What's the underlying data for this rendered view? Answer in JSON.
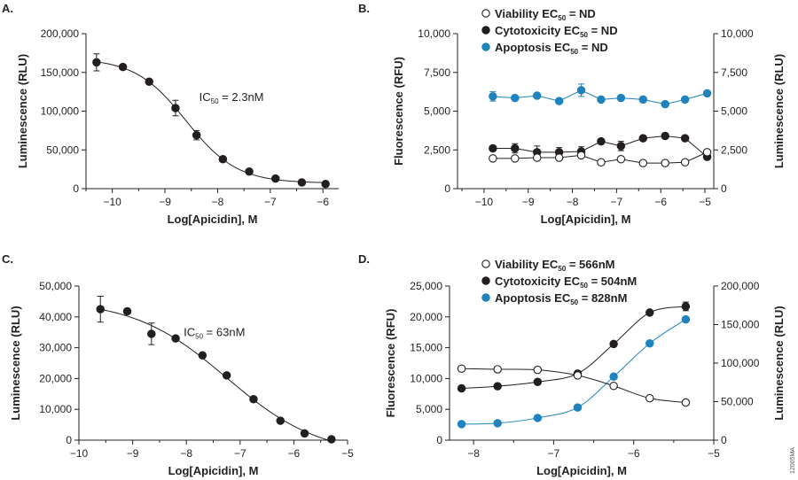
{
  "colors": {
    "black": "#231f20",
    "blue": "#1f83bd",
    "white": "#ffffff"
  },
  "figure_code": "12005MA",
  "chart_data": [
    {
      "id": "A",
      "panel_label": "A.",
      "type": "scatter",
      "xlabel": "Log[Apicidin], M",
      "ylabel": "Luminescence (RLU)",
      "xlim": [
        -10.5,
        -5.7
      ],
      "ylim": [
        0,
        200000
      ],
      "xticks": [
        -10,
        -9,
        -8,
        -7,
        -6
      ],
      "xtick_labels": [
        "−10",
        "−9",
        "−8",
        "−7",
        "−6"
      ],
      "yticks": [
        0,
        50000,
        100000,
        150000,
        200000
      ],
      "ytick_labels": [
        "0",
        "50,000",
        "100,000",
        "150,000",
        "200,000"
      ],
      "annotation": {
        "pre": "IC",
        "sub": "50",
        "post": " = 2.3nM",
        "x": -8.35,
        "y": 113000
      },
      "series": [
        {
          "marker": "filled",
          "color": "#231f20",
          "line_color": "#231f20",
          "fit": "sigmoid",
          "x": [
            -10.3,
            -9.8,
            -9.3,
            -8.8,
            -8.4,
            -7.9,
            -7.4,
            -6.9,
            -6.4,
            -5.95
          ],
          "y": [
            163000,
            157000,
            138000,
            104000,
            69000,
            38000,
            22000,
            13000,
            8000,
            6000
          ],
          "err": [
            11000,
            2000,
            5000,
            10000,
            6000,
            5000,
            2000,
            1500,
            1500,
            1000
          ]
        }
      ]
    },
    {
      "id": "B",
      "panel_label": "B.",
      "type": "scatter",
      "xlabel": "Log[Apicidin], M",
      "ylabel": "Fluorescence (RFU)",
      "y2label": "Luminescence (RLU)",
      "xlim": [
        -10.6,
        -4.8
      ],
      "ylim": [
        0,
        10000
      ],
      "xticks": [
        -10,
        -9,
        -8,
        -7,
        -6,
        -5
      ],
      "xtick_labels": [
        "−10",
        "−9",
        "−8",
        "−7",
        "−6",
        "−5"
      ],
      "yticks": [
        0,
        2500,
        5000,
        7500,
        10000
      ],
      "ytick_labels": [
        "0",
        "2,500",
        "5,000",
        "7,500",
        "10,000"
      ],
      "y2tick_labels": [
        "0",
        "2,500",
        "5,000",
        "7,500",
        "10,000"
      ],
      "legend": [
        {
          "marker": "open",
          "pre": "Viability  EC",
          "sub": "50",
          "post": " = ND"
        },
        {
          "marker": "filled",
          "pre": "Cytotoxicity  EC",
          "sub": "50",
          "post": " = ND"
        },
        {
          "marker": "blue",
          "pre": "Apoptosis EC",
          "sub": "50",
          "post": " = ND"
        }
      ],
      "series": [
        {
          "name": "Apoptosis",
          "marker": "blue",
          "color": "#1f83bd",
          "line_color": "#1f83bd",
          "fit": "connect",
          "x": [
            -9.8,
            -9.3,
            -8.8,
            -8.3,
            -7.8,
            -7.35,
            -6.9,
            -6.4,
            -5.9,
            -5.45,
            -4.95
          ],
          "y": [
            5950,
            5850,
            6000,
            5650,
            6350,
            5750,
            5850,
            5750,
            5450,
            5750,
            6150
          ],
          "err": [
            300,
            150,
            150,
            150,
            400,
            250,
            250,
            150,
            150,
            150,
            150
          ]
        },
        {
          "name": "Cytotoxicity",
          "marker": "filled",
          "color": "#231f20",
          "line_color": "#231f20",
          "fit": "connect",
          "x": [
            -9.8,
            -9.3,
            -8.8,
            -8.3,
            -7.8,
            -7.35,
            -6.9,
            -6.4,
            -5.9,
            -5.45,
            -4.95
          ],
          "y": [
            2600,
            2600,
            2350,
            2350,
            2400,
            3050,
            2750,
            3250,
            3400,
            3250,
            2050
          ],
          "err": [
            100,
            300,
            400,
            300,
            300,
            150,
            300,
            150,
            100,
            150,
            250
          ]
        },
        {
          "name": "Viability",
          "marker": "open",
          "color": "#231f20",
          "line_color": "#231f20",
          "fit": "connect",
          "x": [
            -9.8,
            -9.3,
            -8.8,
            -8.3,
            -7.8,
            -7.35,
            -6.9,
            -6.4,
            -5.9,
            -5.45,
            -4.95
          ],
          "y": [
            1950,
            1950,
            2000,
            2000,
            2150,
            1700,
            1900,
            1650,
            1650,
            1700,
            2350
          ],
          "err": [
            60,
            60,
            150,
            150,
            60,
            60,
            60,
            60,
            60,
            60,
            60
          ]
        }
      ]
    },
    {
      "id": "C",
      "panel_label": "C.",
      "type": "scatter",
      "xlabel": "Log[Apicidin], M",
      "ylabel": "Luminescence (RLU)",
      "xlim": [
        -10,
        -5
      ],
      "ylim": [
        0,
        50000
      ],
      "xticks": [
        -10,
        -9,
        -8,
        -7,
        -6,
        -5
      ],
      "xtick_labels": [
        "−10",
        "−9",
        "−8",
        "−7",
        "−6",
        "−5"
      ],
      "yticks": [
        0,
        10000,
        20000,
        30000,
        40000,
        50000
      ],
      "ytick_labels": [
        "0",
        "10,000",
        "20,000",
        "30,000",
        "40,000",
        "50,000"
      ],
      "annotation": {
        "pre": "IC",
        "sub": "50",
        "post": " = 63nM",
        "x": -8.05,
        "y": 33700
      },
      "series": [
        {
          "marker": "filled",
          "color": "#231f20",
          "line_color": "#231f20",
          "fit": "sigmoid",
          "x": [
            -9.6,
            -9.1,
            -8.65,
            -8.2,
            -7.7,
            -7.25,
            -6.75,
            -6.25,
            -5.8,
            -5.3
          ],
          "y": [
            42500,
            41800,
            34500,
            33000,
            27500,
            21000,
            13300,
            6300,
            2200,
            300
          ],
          "err": [
            4200,
            800,
            3500,
            900,
            800,
            500,
            500,
            400,
            300,
            200
          ]
        }
      ]
    },
    {
      "id": "D",
      "panel_label": "D.",
      "type": "scatter",
      "xlabel": "Log[Apicidin], M",
      "ylabel": "Fluorescence (RFU)",
      "y2label": "Luminescence (RLU)",
      "xlim": [
        -8.3,
        -5
      ],
      "ylim": [
        0,
        25000
      ],
      "xticks": [
        -8,
        -7,
        -6,
        -5
      ],
      "xtick_labels": [
        "−8",
        "−7",
        "−6",
        "−5"
      ],
      "yticks": [
        0,
        5000,
        10000,
        15000,
        20000,
        25000
      ],
      "ytick_labels": [
        "0",
        "5,000",
        "10,000",
        "15,000",
        "20,000",
        "25,000"
      ],
      "y2tick_labels": [
        "0",
        "50,000",
        "100,000",
        "150,000",
        "200,000"
      ],
      "y2ticks_left_units": [
        0,
        6250,
        12500,
        18750,
        25000
      ],
      "legend": [
        {
          "marker": "open",
          "pre": "Viability  EC",
          "sub": "50",
          "post": " = 566nM"
        },
        {
          "marker": "filled",
          "pre": "Cytotoxicity  EC",
          "sub": "50",
          "post": " = 504nM"
        },
        {
          "marker": "blue",
          "pre": "Apoptosis EC",
          "sub": "50",
          "post": " = 828nM"
        }
      ],
      "series": [
        {
          "name": "Apoptosis",
          "marker": "blue",
          "color": "#1f83bd",
          "line_color": "#1f83bd",
          "fit": "smooth",
          "x": [
            -8.15,
            -7.7,
            -7.2,
            -6.7,
            -6.25,
            -5.8,
            -5.35
          ],
          "y": [
            2600,
            2750,
            3600,
            5300,
            10300,
            15700,
            19600
          ],
          "err": [
            100,
            100,
            100,
            100,
            200,
            300,
            300
          ]
        },
        {
          "name": "Cytotoxicity",
          "marker": "filled",
          "color": "#231f20",
          "line_color": "#231f20",
          "fit": "smooth",
          "x": [
            -8.15,
            -7.7,
            -7.2,
            -6.7,
            -6.25,
            -5.8,
            -5.35
          ],
          "y": [
            8400,
            8750,
            9450,
            10800,
            15600,
            20700,
            21700
          ],
          "err": [
            100,
            100,
            200,
            200,
            300,
            300,
            700
          ]
        },
        {
          "name": "Viability",
          "marker": "open",
          "color": "#231f20",
          "line_color": "#231f20",
          "fit": "smooth",
          "x": [
            -8.15,
            -7.7,
            -7.2,
            -6.7,
            -6.25,
            -5.8,
            -5.35
          ],
          "y": [
            11600,
            11500,
            11400,
            10500,
            8800,
            6800,
            6100
          ],
          "err": [
            100,
            100,
            100,
            100,
            200,
            200,
            100
          ]
        }
      ]
    }
  ]
}
